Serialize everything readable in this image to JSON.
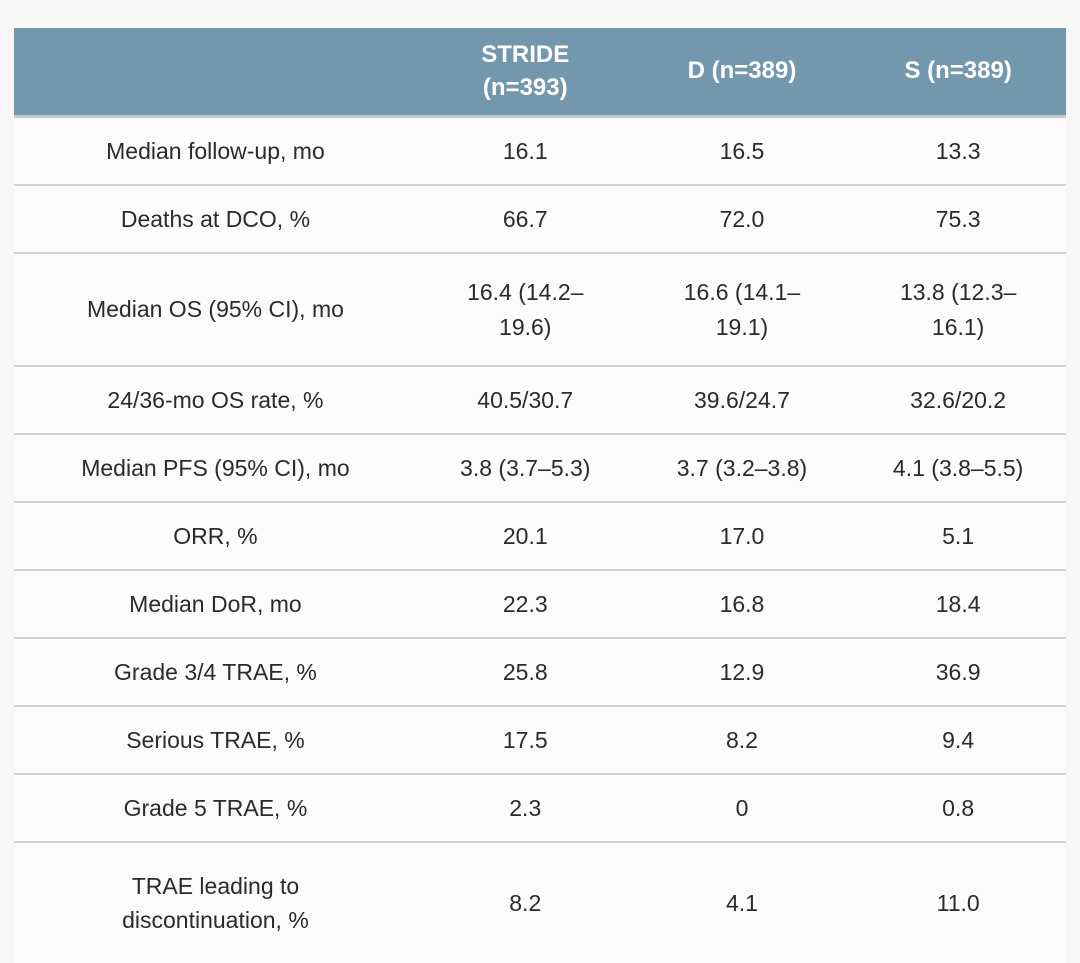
{
  "colors": {
    "header_bg": "#7397ac",
    "header_text": "#ffffff",
    "body_bg": "#fbfbfb",
    "page_bg": "#f8f8f8",
    "row_divider": "#d4d4d4",
    "body_text": "#2b2b2b"
  },
  "chart_data": {
    "type": "table",
    "columns": [
      "",
      "STRIDE (n=393)",
      "D (n=389)",
      "S (n=389)"
    ],
    "rows": [
      {
        "label": "Median follow-up, mo",
        "values": [
          "16.1",
          "16.5",
          "13.3"
        ]
      },
      {
        "label": "Deaths at DCO, %",
        "values": [
          "66.7",
          "72.0",
          "75.3"
        ]
      },
      {
        "label": "Median OS (95% CI), mo",
        "values": [
          "16.4 (14.2–19.6)",
          "16.6 (14.1–19.1)",
          "13.8 (12.3–16.1)"
        ]
      },
      {
        "label": "24/36-mo OS rate, %",
        "values": [
          "40.5/30.7",
          "39.6/24.7",
          "32.6/20.2"
        ]
      },
      {
        "label": "Median PFS (95% CI), mo",
        "values": [
          "3.8 (3.7–5.3)",
          "3.7 (3.2–3.8)",
          "4.1 (3.8–5.5)"
        ]
      },
      {
        "label": "ORR, %",
        "values": [
          "20.1",
          "17.0",
          "5.1"
        ]
      },
      {
        "label": "Median DoR, mo",
        "values": [
          "22.3",
          "16.8",
          "18.4"
        ]
      },
      {
        "label": "Grade 3/4 TRAE, %",
        "values": [
          "25.8",
          "12.9",
          "36.9"
        ]
      },
      {
        "label": "Serious TRAE, %",
        "values": [
          "17.5",
          "8.2",
          "9.4"
        ]
      },
      {
        "label": "Grade 5 TRAE, %",
        "values": [
          "2.3",
          "0",
          "0.8"
        ]
      },
      {
        "label": "TRAE leading to discontinuation, %",
        "values": [
          "8.2",
          "4.1",
          "11.0"
        ]
      }
    ]
  }
}
